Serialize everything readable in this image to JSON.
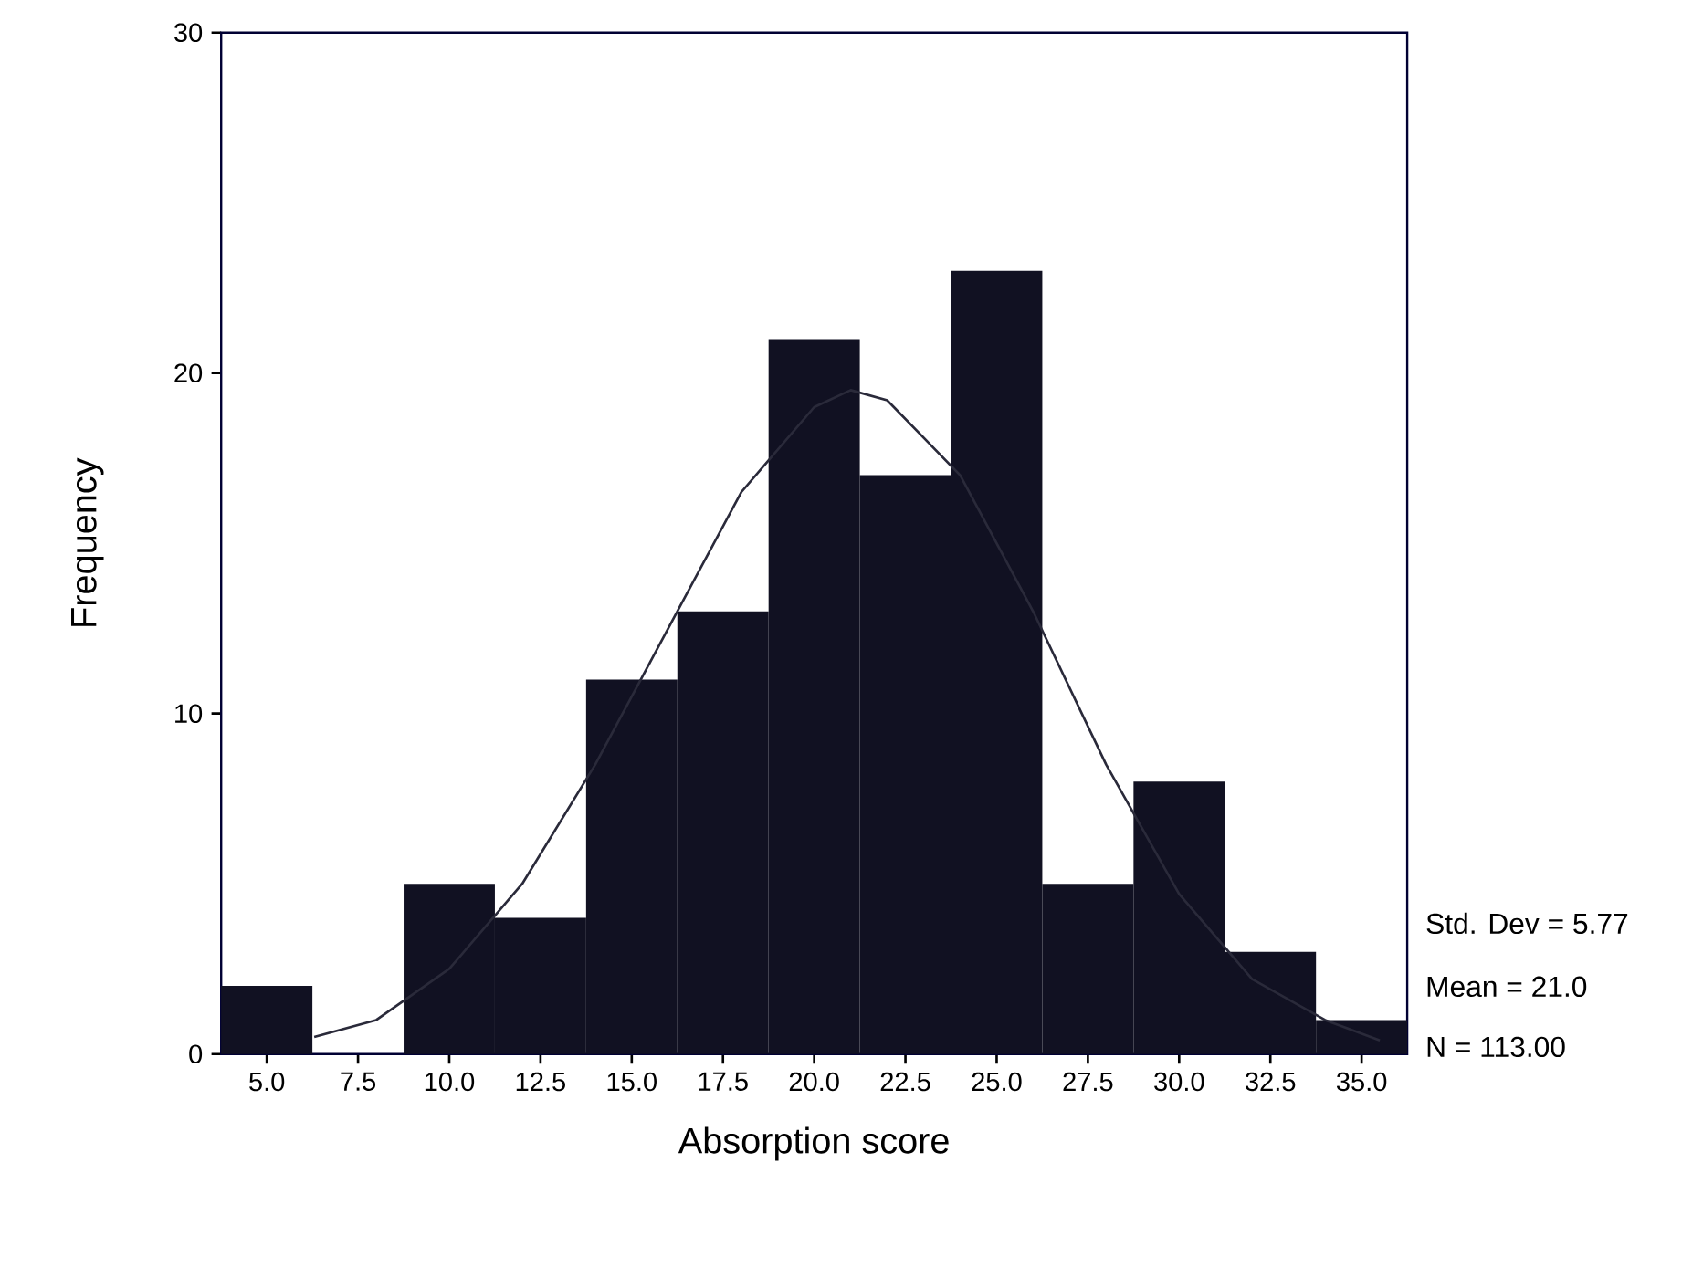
{
  "chart_data": {
    "type": "histogram",
    "xlabel": "Absorption score",
    "ylabel": "Frequency",
    "bins": [
      3.75,
      6.25,
      8.75,
      11.25,
      13.75,
      16.25,
      18.75,
      21.25,
      23.75,
      26.25,
      28.75,
      31.25,
      33.75,
      36.25
    ],
    "values": [
      2,
      0,
      5,
      4,
      11,
      13,
      21,
      17,
      23,
      5,
      8,
      3,
      1
    ],
    "color": "#111122",
    "series": [
      {
        "type": "line",
        "color": "#2a2a3a",
        "x": [
          6.3,
          8,
          10,
          12,
          14,
          16,
          18,
          20,
          21,
          22,
          24,
          26,
          28,
          30,
          32,
          34,
          35.5
        ],
        "values": [
          0.5,
          1,
          2.5,
          5,
          8.5,
          12.5,
          16.5,
          19,
          19.5,
          19.2,
          17,
          13,
          8.5,
          4.7,
          2.2,
          1,
          0.4
        ]
      }
    ],
    "xlim": [
      3.75,
      36.25
    ],
    "ylim": [
      0,
      30
    ],
    "xticks": [
      {
        "value": 5,
        "label": "5.0"
      },
      {
        "value": 7.5,
        "label": "7.5"
      },
      {
        "value": 10,
        "label": "10.0"
      },
      {
        "value": 12.5,
        "label": "12.5"
      },
      {
        "value": 15,
        "label": "15.0"
      },
      {
        "value": 17.5,
        "label": "17.5"
      },
      {
        "value": 20,
        "label": "20.0"
      },
      {
        "value": 22.5,
        "label": "22.5"
      },
      {
        "value": 25,
        "label": "25.0"
      },
      {
        "value": 27.5,
        "label": "27.5"
      },
      {
        "value": 30,
        "label": "30.0"
      },
      {
        "value": 32.5,
        "label": "32.5"
      },
      {
        "value": 35,
        "label": "35.0"
      }
    ],
    "yticks": [
      0,
      10,
      20,
      30
    ],
    "annotations": [
      "Std. Dev = 5.77",
      "Mean = 21.0",
      "N = 113.00"
    ]
  }
}
